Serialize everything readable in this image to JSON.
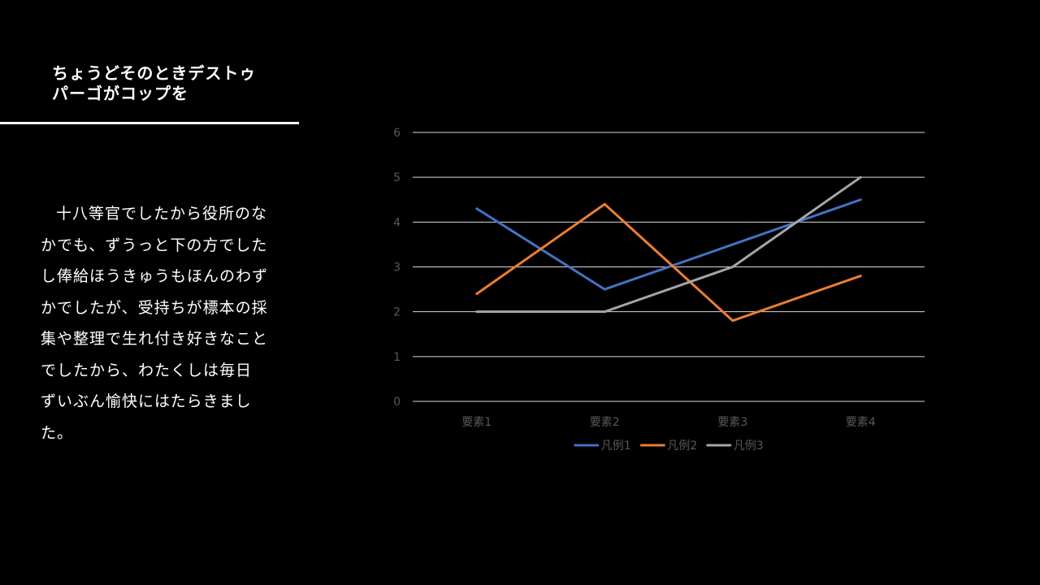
{
  "slide": {
    "title": "ちょうどそのときデストゥパーゴがコップを",
    "body": "十八等官でしたから役所のなかでも、ずうっと下の方でしたし俸給ほうきゅうもほんのわずかでしたが、受持ちが標本の採集や整理で生れ付き好きなことでしたから、わたくしは毎日ずいぶん愉快にはたらきました。"
  },
  "colors": {
    "background": "#000000",
    "text": "#ffffff",
    "gridline": "#d9d9d9",
    "axis_text": "#595959"
  },
  "chart_data": {
    "type": "line",
    "categories": [
      "要素1",
      "要素2",
      "要素3",
      "要素4"
    ],
    "series": [
      {
        "name": "凡例1",
        "values": [
          4.3,
          2.5,
          3.5,
          4.5
        ],
        "color": "#4472c4"
      },
      {
        "name": "凡例2",
        "values": [
          2.4,
          4.4,
          1.8,
          2.8
        ],
        "color": "#ed7d31"
      },
      {
        "name": "凡例3",
        "values": [
          2,
          2,
          3,
          5
        ],
        "color": "#a5a5a5"
      }
    ],
    "ylim": [
      0,
      6
    ],
    "y_ticks": [
      0,
      1,
      2,
      3,
      4,
      5,
      6
    ],
    "grid": true,
    "legend": "bottom"
  }
}
